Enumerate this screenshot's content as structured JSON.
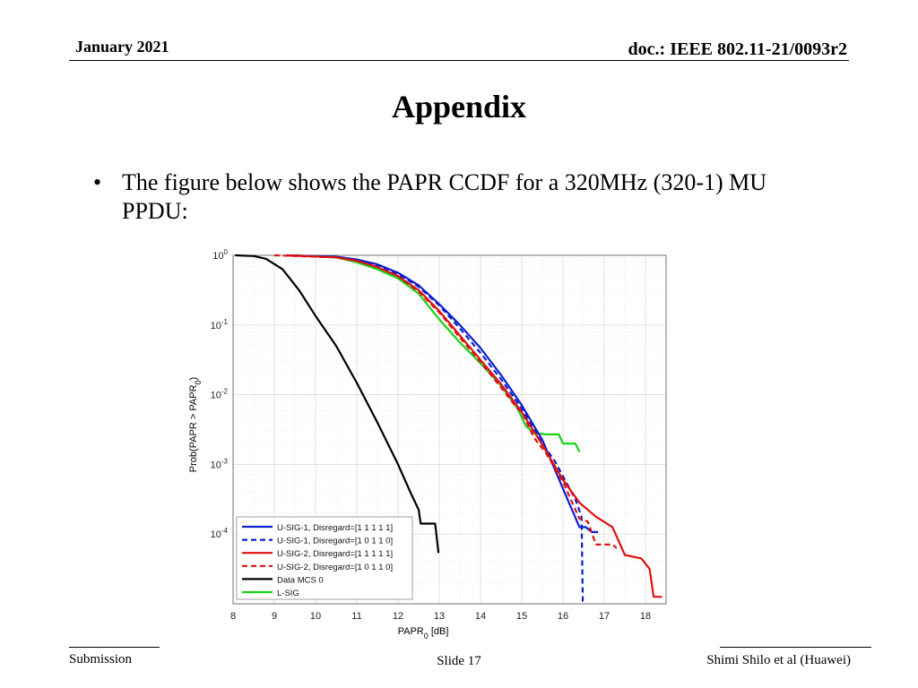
{
  "header": {
    "date": "January 2021",
    "doc": "doc.: IEEE 802.11-21/0093r2"
  },
  "title": "Appendix",
  "bullet": {
    "symbol": "•",
    "text": "The figure below shows the PAPR CCDF for a 320MHz (320-1) MU PPDU:"
  },
  "footer": {
    "left": "Submission",
    "center": "Slide 17",
    "right": "Shimi Shilo et al (Huawei)"
  },
  "chart_data": {
    "type": "line",
    "xlabel_main": "PAPR",
    "xlabel_sub": "0",
    "xlabel_unit": " [dB]",
    "ylabel_main": "Prob(PAPR > PAPR",
    "ylabel_sub": "0",
    "ylabel_close": ")",
    "xlim": [
      8,
      18.5
    ],
    "ylim_log10": [
      -5,
      0
    ],
    "yscale": "log",
    "x_ticks": [
      "8",
      "9",
      "10",
      "11",
      "12",
      "13",
      "14",
      "15",
      "16",
      "17",
      "18"
    ],
    "y_ticks": [
      {
        "base": "10",
        "exp": "0",
        "value": 0
      },
      {
        "base": "10",
        "exp": "-1",
        "value": -1
      },
      {
        "base": "10",
        "exp": "-2",
        "value": -2
      },
      {
        "base": "10",
        "exp": "-3",
        "value": -3
      },
      {
        "base": "10",
        "exp": "-4",
        "value": -4
      }
    ],
    "grid": true,
    "legend_position": "bottom-left",
    "series": [
      {
        "name": "U-SIG-1, Disregard=[1 1 1 1 1]",
        "color": "#0a1fd0",
        "dash": false,
        "points": [
          [
            9.3,
            0
          ],
          [
            10.5,
            -0.02
          ],
          [
            11,
            -0.06
          ],
          [
            11.5,
            -0.13
          ],
          [
            12,
            -0.25
          ],
          [
            12.5,
            -0.43
          ],
          [
            13,
            -0.7
          ],
          [
            13.5,
            -1.0
          ],
          [
            14,
            -1.33
          ],
          [
            14.5,
            -1.72
          ],
          [
            15,
            -2.15
          ],
          [
            15.5,
            -2.65
          ],
          [
            16,
            -3.35
          ],
          [
            16.4,
            -3.9
          ],
          [
            16.55,
            -3.9
          ],
          [
            16.7,
            -3.97
          ],
          [
            16.85,
            -3.97
          ]
        ]
      },
      {
        "name": "U-SIG-1, Disregard=[1 0 1 1 0]",
        "color": "#0a1fd0",
        "dash": true,
        "points": [
          [
            9.3,
            0
          ],
          [
            10.5,
            -0.02
          ],
          [
            11,
            -0.06
          ],
          [
            11.5,
            -0.14
          ],
          [
            12,
            -0.27
          ],
          [
            12.5,
            -0.45
          ],
          [
            13,
            -0.72
          ],
          [
            13.5,
            -1.05
          ],
          [
            14,
            -1.4
          ],
          [
            14.5,
            -1.78
          ],
          [
            15,
            -2.2
          ],
          [
            15.5,
            -2.7
          ],
          [
            15.8,
            -2.95
          ],
          [
            16.1,
            -3.28
          ],
          [
            16.3,
            -3.5
          ],
          [
            16.45,
            -3.75
          ],
          [
            16.48,
            -5
          ]
        ]
      },
      {
        "name": "U-SIG-2, Disregard=[1 1 1 1 1]",
        "color": "#e01010",
        "dash": false,
        "points": [
          [
            9.3,
            0
          ],
          [
            10.5,
            -0.03
          ],
          [
            11,
            -0.08
          ],
          [
            11.5,
            -0.17
          ],
          [
            12,
            -0.3
          ],
          [
            12.5,
            -0.5
          ],
          [
            13,
            -0.8
          ],
          [
            13.5,
            -1.15
          ],
          [
            14,
            -1.5
          ],
          [
            14.5,
            -1.85
          ],
          [
            15,
            -2.25
          ],
          [
            15.5,
            -2.72
          ],
          [
            16,
            -3.22
          ],
          [
            16.4,
            -3.55
          ],
          [
            16.8,
            -3.75
          ],
          [
            17.2,
            -3.9
          ],
          [
            17.5,
            -4.3
          ],
          [
            17.9,
            -4.35
          ],
          [
            18.1,
            -4.5
          ],
          [
            18.2,
            -4.9
          ],
          [
            18.4,
            -4.9
          ]
        ]
      },
      {
        "name": "U-SIG-2, Disregard=[1 0 1 1 0]",
        "color": "#e01010",
        "dash": true,
        "points": [
          [
            9.0,
            0
          ],
          [
            10.5,
            -0.03
          ],
          [
            11,
            -0.08
          ],
          [
            11.5,
            -0.17
          ],
          [
            12,
            -0.3
          ],
          [
            12.5,
            -0.52
          ],
          [
            13,
            -0.82
          ],
          [
            13.5,
            -1.18
          ],
          [
            14,
            -1.53
          ],
          [
            14.5,
            -1.9
          ],
          [
            14.9,
            -2.2
          ],
          [
            15.0,
            -2.25
          ],
          [
            15.3,
            -2.62
          ],
          [
            15.6,
            -2.85
          ],
          [
            16.0,
            -3.25
          ],
          [
            16.4,
            -3.78
          ],
          [
            16.6,
            -3.82
          ],
          [
            16.8,
            -4.15
          ],
          [
            17.2,
            -4.15
          ],
          [
            17.3,
            -4.2
          ]
        ]
      },
      {
        "name": "Data MCS 0",
        "color": "#000000",
        "dash": false,
        "points": [
          [
            8.05,
            0
          ],
          [
            8.5,
            -0.01
          ],
          [
            8.8,
            -0.05
          ],
          [
            9.2,
            -0.2
          ],
          [
            9.6,
            -0.5
          ],
          [
            10,
            -0.87
          ],
          [
            10.5,
            -1.3
          ],
          [
            11,
            -1.83
          ],
          [
            11.5,
            -2.4
          ],
          [
            12,
            -3.0
          ],
          [
            12.3,
            -3.4
          ],
          [
            12.5,
            -3.65
          ],
          [
            12.55,
            -3.85
          ],
          [
            12.9,
            -3.85
          ],
          [
            12.98,
            -4.27
          ]
        ]
      },
      {
        "name": "L-SIG",
        "color": "#17d417",
        "dash": false,
        "points": [
          [
            9.5,
            0
          ],
          [
            10.5,
            -0.03
          ],
          [
            11,
            -0.1
          ],
          [
            11.5,
            -0.2
          ],
          [
            12,
            -0.33
          ],
          [
            12.5,
            -0.55
          ],
          [
            13,
            -0.92
          ],
          [
            13.5,
            -1.25
          ],
          [
            14,
            -1.55
          ],
          [
            14.5,
            -1.87
          ],
          [
            14.9,
            -2.2
          ],
          [
            15.1,
            -2.45
          ],
          [
            15.3,
            -2.55
          ],
          [
            15.6,
            -2.57
          ],
          [
            15.9,
            -2.57
          ],
          [
            16.0,
            -2.7
          ],
          [
            16.3,
            -2.7
          ],
          [
            16.4,
            -2.82
          ]
        ]
      }
    ]
  }
}
